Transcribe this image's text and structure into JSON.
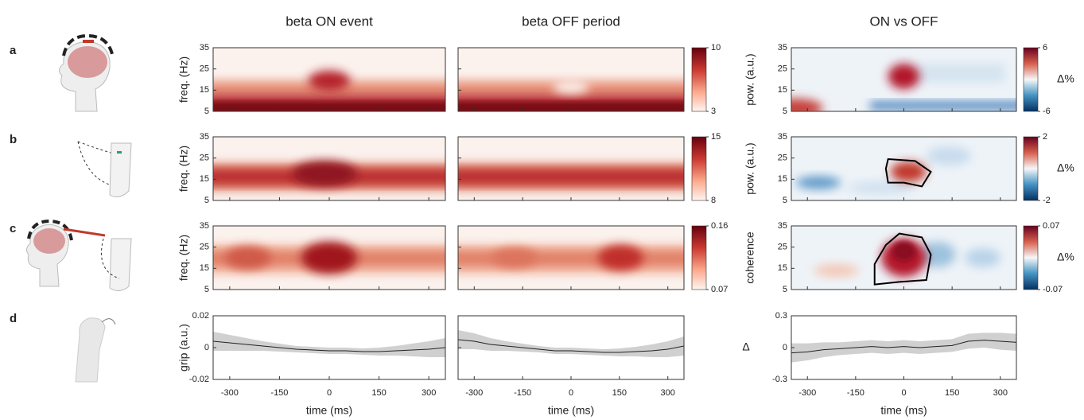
{
  "columns": [
    "beta ON event",
    "beta OFF period",
    "ON vs OFF"
  ],
  "xlabel": "time (ms)",
  "xlim": [
    -350,
    350
  ],
  "xticks": [
    -300,
    -150,
    0,
    150,
    300
  ],
  "rows": [
    {
      "label": "a",
      "ylabel": "freq. (Hz)",
      "ylim": [
        5,
        35
      ],
      "yticks": [
        5,
        15,
        25,
        35
      ],
      "clim": [
        3,
        10
      ],
      "diff_ylabel": "pow. (a.u.)",
      "diff_clim": [
        -6,
        6
      ],
      "diff_label": "Δ%"
    },
    {
      "label": "b",
      "ylabel": "freq. (Hz)",
      "ylim": [
        5,
        35
      ],
      "yticks": [
        5,
        15,
        25,
        35
      ],
      "clim": [
        8,
        15
      ],
      "diff_ylabel": "pow. (a.u.)",
      "diff_clim": [
        -2,
        2
      ],
      "diff_label": "Δ%"
    },
    {
      "label": "c",
      "ylabel": "freq. (Hz)",
      "ylim": [
        5,
        35
      ],
      "yticks": [
        5,
        15,
        25,
        35
      ],
      "clim": [
        0.07,
        0.16
      ],
      "diff_ylabel": "coherence",
      "diff_clim": [
        -0.07,
        0.07
      ],
      "diff_label": "Δ%"
    }
  ],
  "grip": {
    "label": "d",
    "ylabel": "grip (a.u.)",
    "ylim": [
      -0.02,
      0.02
    ],
    "yticks": [
      -0.02,
      0,
      0.02
    ],
    "diff_ylabel": "Δ",
    "diff_ylim": [
      -0.3,
      0.3
    ],
    "diff_yticks": [
      -0.3,
      0,
      0.3
    ],
    "x": [
      -350,
      -300,
      -250,
      -200,
      -150,
      -100,
      -50,
      0,
      50,
      100,
      150,
      200,
      250,
      300,
      350
    ],
    "on": {
      "values": [
        0.004,
        0.003,
        0.002,
        0.001,
        0,
        -0.001,
        -0.0015,
        -0.002,
        -0.002,
        -0.0025,
        -0.0025,
        -0.002,
        -0.0015,
        -0.001,
        0
      ],
      "error": [
        0.006,
        0.005,
        0.004,
        0.003,
        0.0025,
        0.002,
        0.002,
        0.002,
        0.002,
        0.002,
        0.0025,
        0.003,
        0.004,
        0.005,
        0.006
      ]
    },
    "off": {
      "values": [
        0.005,
        0.004,
        0.002,
        0.001,
        0,
        -0.001,
        -0.002,
        -0.002,
        -0.0025,
        -0.003,
        -0.003,
        -0.0025,
        -0.002,
        -0.001,
        0.001
      ],
      "error": [
        0.006,
        0.005,
        0.004,
        0.003,
        0.0025,
        0.002,
        0.002,
        0.002,
        0.002,
        0.002,
        0.0025,
        0.003,
        0.004,
        0.005,
        0.006
      ]
    },
    "diff": {
      "values": [
        -0.05,
        -0.04,
        -0.02,
        -0.01,
        0,
        0.01,
        0,
        0.01,
        0,
        0.01,
        0.02,
        0.06,
        0.07,
        0.06,
        0.05
      ],
      "error": [
        0.09,
        0.08,
        0.07,
        0.06,
        0.06,
        0.06,
        0.06,
        0.06,
        0.06,
        0.06,
        0.06,
        0.07,
        0.07,
        0.08,
        0.08
      ]
    }
  }
}
